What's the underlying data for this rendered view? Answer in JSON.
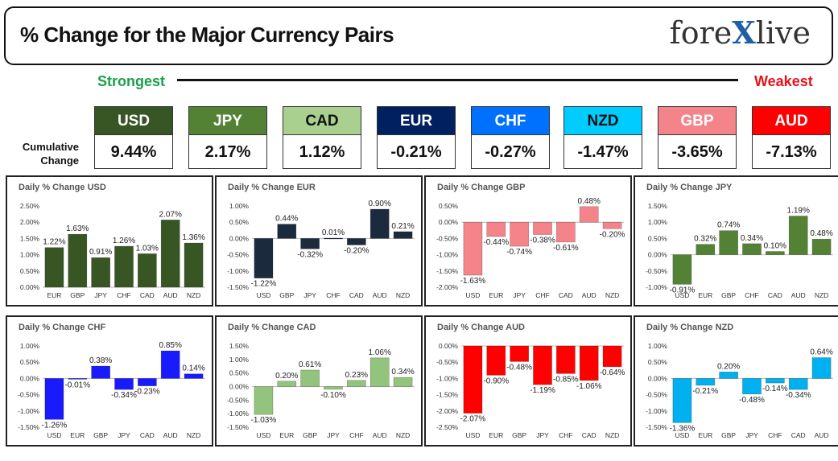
{
  "header": {
    "title": "% Change for the Major Currency Pairs",
    "logo_left": "fore",
    "logo_x": "X",
    "logo_right": "live"
  },
  "scale": {
    "strongest": "Strongest",
    "weakest": "Weakest"
  },
  "cumulative": {
    "label_line1": "Cumulative",
    "label_line2": "Change",
    "currencies": [
      {
        "code": "USD",
        "value": "9.44%",
        "color": "#375623",
        "text_color": "#ffffff"
      },
      {
        "code": "JPY",
        "value": "2.17%",
        "color": "#548235",
        "text_color": "#ffffff"
      },
      {
        "code": "CAD",
        "value": "1.12%",
        "color": "#a9d08e",
        "text_color": "#111111"
      },
      {
        "code": "EUR",
        "value": "-0.21%",
        "color": "#002060",
        "text_color": "#ffffff"
      },
      {
        "code": "CHF",
        "value": "-0.27%",
        "color": "#0070ff",
        "text_color": "#ffffff"
      },
      {
        "code": "NZD",
        "value": "-1.47%",
        "color": "#00ccff",
        "text_color": "#111111"
      },
      {
        "code": "GBP",
        "value": "-3.65%",
        "color": "#f4848a",
        "text_color": "#ffffff"
      },
      {
        "code": "AUD",
        "value": "-7.13%",
        "color": "#ff0000",
        "text_color": "#ffffff"
      }
    ]
  },
  "chart_data": [
    {
      "type": "bar",
      "title": "Daily % Change USD",
      "categories": [
        "EUR",
        "GBP",
        "JPY",
        "CHF",
        "CAD",
        "AUD",
        "NZD"
      ],
      "values": [
        1.22,
        1.63,
        0.91,
        1.26,
        1.03,
        2.07,
        1.36
      ],
      "labels": [
        "1.22%",
        "1.63%",
        "0.91%",
        "1.26%",
        "1.03%",
        "2.07%",
        "1.36%"
      ],
      "ylim": [
        0,
        2.5
      ],
      "yticks": [
        "0.00%",
        "0.50%",
        "1.00%",
        "1.50%",
        "2.00%",
        "2.50%"
      ],
      "tick_values": [
        0,
        0.5,
        1,
        1.5,
        2,
        2.5
      ],
      "color": "#375623"
    },
    {
      "type": "bar",
      "title": "Daily % Change EUR",
      "categories": [
        "USD",
        "GBP",
        "JPY",
        "CHF",
        "CAD",
        "AUD",
        "NZD"
      ],
      "values": [
        -1.22,
        0.44,
        -0.32,
        0.01,
        -0.2,
        0.9,
        0.21
      ],
      "labels": [
        "-1.22%",
        "0.44%",
        "-0.32%",
        "0.01%",
        "-0.20%",
        "0.90%",
        "0.21%"
      ],
      "ylim": [
        -1.5,
        1.0
      ],
      "yticks": [
        "-1.50%",
        "-1.00%",
        "-0.50%",
        "0.00%",
        "0.50%",
        "1.00%"
      ],
      "tick_values": [
        -1.5,
        -1,
        -0.5,
        0,
        0.5,
        1
      ],
      "color": "#1c2a3d"
    },
    {
      "type": "bar",
      "title": "Daily % Change GBP",
      "categories": [
        "USD",
        "EUR",
        "JPY",
        "CHF",
        "CAD",
        "AUD",
        "NZD"
      ],
      "values": [
        -1.63,
        -0.44,
        -0.74,
        -0.38,
        -0.61,
        0.48,
        -0.2
      ],
      "labels": [
        "-1.63%",
        "-0.44%",
        "-0.74%",
        "-0.38%",
        "-0.61%",
        "0.48%",
        "-0.20%"
      ],
      "ylim": [
        -2.0,
        0.5
      ],
      "yticks": [
        "-2.00%",
        "-1.50%",
        "-1.00%",
        "-0.50%",
        "0.00%",
        "0.50%"
      ],
      "tick_values": [
        -2,
        -1.5,
        -1,
        -0.5,
        0,
        0.5
      ],
      "color": "#f4848a"
    },
    {
      "type": "bar",
      "title": "Daily % Change JPY",
      "categories": [
        "USD",
        "EUR",
        "GBP",
        "CHF",
        "CAD",
        "AUD",
        "NZD"
      ],
      "values": [
        -0.91,
        0.32,
        0.74,
        0.34,
        0.1,
        1.19,
        0.48
      ],
      "labels": [
        "-0.91%",
        "0.32%",
        "0.74%",
        "0.34%",
        "0.10%",
        "1.19%",
        "0.48%"
      ],
      "ylim": [
        -1.0,
        1.5
      ],
      "yticks": [
        "-1.00%",
        "-0.50%",
        "0.00%",
        "0.50%",
        "1.00%",
        "1.50%"
      ],
      "tick_values": [
        -1,
        -0.5,
        0,
        0.5,
        1,
        1.5
      ],
      "color": "#548235"
    },
    {
      "type": "bar",
      "title": "Daily % Change CHF",
      "categories": [
        "USD",
        "EUR",
        "GBP",
        "JPY",
        "CAD",
        "AUD",
        "NZD"
      ],
      "values": [
        -1.26,
        -0.01,
        0.38,
        -0.34,
        -0.23,
        0.85,
        0.14
      ],
      "labels": [
        "-1.26%",
        "-0.01%",
        "0.38%",
        "-0.34%",
        "-0.23%",
        "0.85%",
        "0.14%"
      ],
      "ylim": [
        -1.5,
        1.0
      ],
      "yticks": [
        "-1.50%",
        "-1.00%",
        "-0.50%",
        "0.00%",
        "0.50%",
        "1.00%"
      ],
      "tick_values": [
        -1.5,
        -1,
        -0.5,
        0,
        0.5,
        1
      ],
      "color": "#1a1aff"
    },
    {
      "type": "bar",
      "title": "Daily % Change CAD",
      "categories": [
        "USD",
        "EUR",
        "GBP",
        "JPY",
        "CHF",
        "AUD",
        "NZD"
      ],
      "values": [
        -1.03,
        0.2,
        0.61,
        -0.1,
        0.23,
        1.06,
        0.34
      ],
      "labels": [
        "-1.03%",
        "0.20%",
        "0.61%",
        "-0.10%",
        "0.23%",
        "1.06%",
        "0.34%"
      ],
      "ylim": [
        -1.5,
        1.5
      ],
      "yticks": [
        "-1.50%",
        "-1.00%",
        "-0.50%",
        "0.00%",
        "0.50%",
        "1.00%",
        "1.50%"
      ],
      "tick_values": [
        -1.5,
        -1,
        -0.5,
        0,
        0.5,
        1,
        1.5
      ],
      "color": "#93c47d"
    },
    {
      "type": "bar",
      "title": "Daily % Change AUD",
      "categories": [
        "USD",
        "EUR",
        "GBP",
        "JPY",
        "CHF",
        "CAD",
        "NZD"
      ],
      "values": [
        -2.07,
        -0.9,
        -0.48,
        -1.19,
        -0.85,
        -1.06,
        -0.64
      ],
      "labels": [
        "-2.07%",
        "-0.90%",
        "-0.48%",
        "-1.19%",
        "-0.85%",
        "-1.06%",
        "-0.64%"
      ],
      "ylim": [
        -2.5,
        0.0
      ],
      "yticks": [
        "-2.50%",
        "-2.00%",
        "-1.50%",
        "-1.00%",
        "-0.50%",
        "0.00%"
      ],
      "tick_values": [
        -2.5,
        -2,
        -1.5,
        -1,
        -0.5,
        0
      ],
      "color": "#ff0000"
    },
    {
      "type": "bar",
      "title": "Daily % Change NZD",
      "categories": [
        "USD",
        "EUR",
        "GBP",
        "JPY",
        "CHF",
        "CAD",
        "AUD"
      ],
      "values": [
        -1.36,
        -0.21,
        0.2,
        -0.48,
        -0.14,
        -0.34,
        0.64
      ],
      "labels": [
        "-1.36%",
        "-0.21%",
        "0.20%",
        "-0.48%",
        "-0.14%",
        "-0.34%",
        "0.64%"
      ],
      "ylim": [
        -1.5,
        1.0
      ],
      "yticks": [
        "-1.50%",
        "-1.00%",
        "-0.50%",
        "0.00%",
        "0.50%",
        "1.00%"
      ],
      "tick_values": [
        -1.5,
        -1,
        -0.5,
        0,
        0.5,
        1
      ],
      "color": "#00b0f0"
    }
  ]
}
